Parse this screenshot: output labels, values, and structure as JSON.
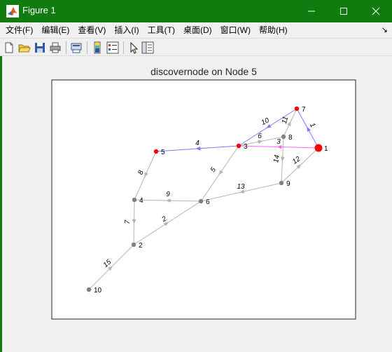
{
  "window": {
    "title": "Figure 1",
    "title_bar_color": "#107c10"
  },
  "menu": {
    "items": [
      "文件(F)",
      "编辑(E)",
      "查看(V)",
      "插入(I)",
      "工具(T)",
      "桌面(D)",
      "窗口(W)",
      "帮助(H)"
    ]
  },
  "toolbar": {
    "buttons": [
      "new-figure-icon",
      "open-file-icon",
      "save-icon",
      "print-icon",
      "print-preview-icon",
      "colorbar-icon",
      "legend-icon",
      "pointer-icon",
      "property-inspector-icon"
    ]
  },
  "plot": {
    "title": "discovernode on Node 5",
    "colors": {
      "visited": "#ff0000",
      "unvisited": "#808080",
      "edge": "#b4b4b4",
      "tree_edge": "#7b7bff",
      "active_edge": "#ff66ff"
    },
    "nodes": [
      {
        "id": "1",
        "state": "visited",
        "current": true
      },
      {
        "id": "2",
        "state": "unvisited"
      },
      {
        "id": "3",
        "state": "visited"
      },
      {
        "id": "4",
        "state": "unvisited"
      },
      {
        "id": "5",
        "state": "visited"
      },
      {
        "id": "6",
        "state": "unvisited"
      },
      {
        "id": "7",
        "state": "visited"
      },
      {
        "id": "8",
        "state": "unvisited"
      },
      {
        "id": "9",
        "state": "unvisited"
      },
      {
        "id": "10",
        "state": "unvisited"
      }
    ],
    "edges": [
      {
        "label": "1",
        "from": "1",
        "to": "7",
        "kind": "tree_edge"
      },
      {
        "label": "10",
        "from": "7",
        "to": "3",
        "kind": "tree_edge"
      },
      {
        "label": "4",
        "from": "3",
        "to": "5",
        "kind": "tree_edge"
      },
      {
        "label": "3",
        "from": "1",
        "to": "3",
        "kind": "active_edge"
      },
      {
        "label": "6",
        "from": "3",
        "to": "8",
        "kind": "edge"
      },
      {
        "label": "11",
        "from": "8",
        "to": "7",
        "kind": "edge"
      },
      {
        "label": "14",
        "from": "8",
        "to": "9",
        "kind": "edge"
      },
      {
        "label": "12",
        "from": "9",
        "to": "1",
        "kind": "edge"
      },
      {
        "label": "5",
        "from": "3",
        "to": "6",
        "kind": "edge"
      },
      {
        "label": "8",
        "from": "5",
        "to": "4",
        "kind": "edge"
      },
      {
        "label": "9",
        "from": "6",
        "to": "4",
        "kind": "edge"
      },
      {
        "label": "13",
        "from": "9",
        "to": "6",
        "kind": "edge"
      },
      {
        "label": "7",
        "from": "4",
        "to": "2",
        "kind": "edge"
      },
      {
        "label": "2",
        "from": "2",
        "to": "6",
        "kind": "edge"
      },
      {
        "label": "15",
        "from": "10",
        "to": "2",
        "kind": "edge"
      }
    ]
  }
}
